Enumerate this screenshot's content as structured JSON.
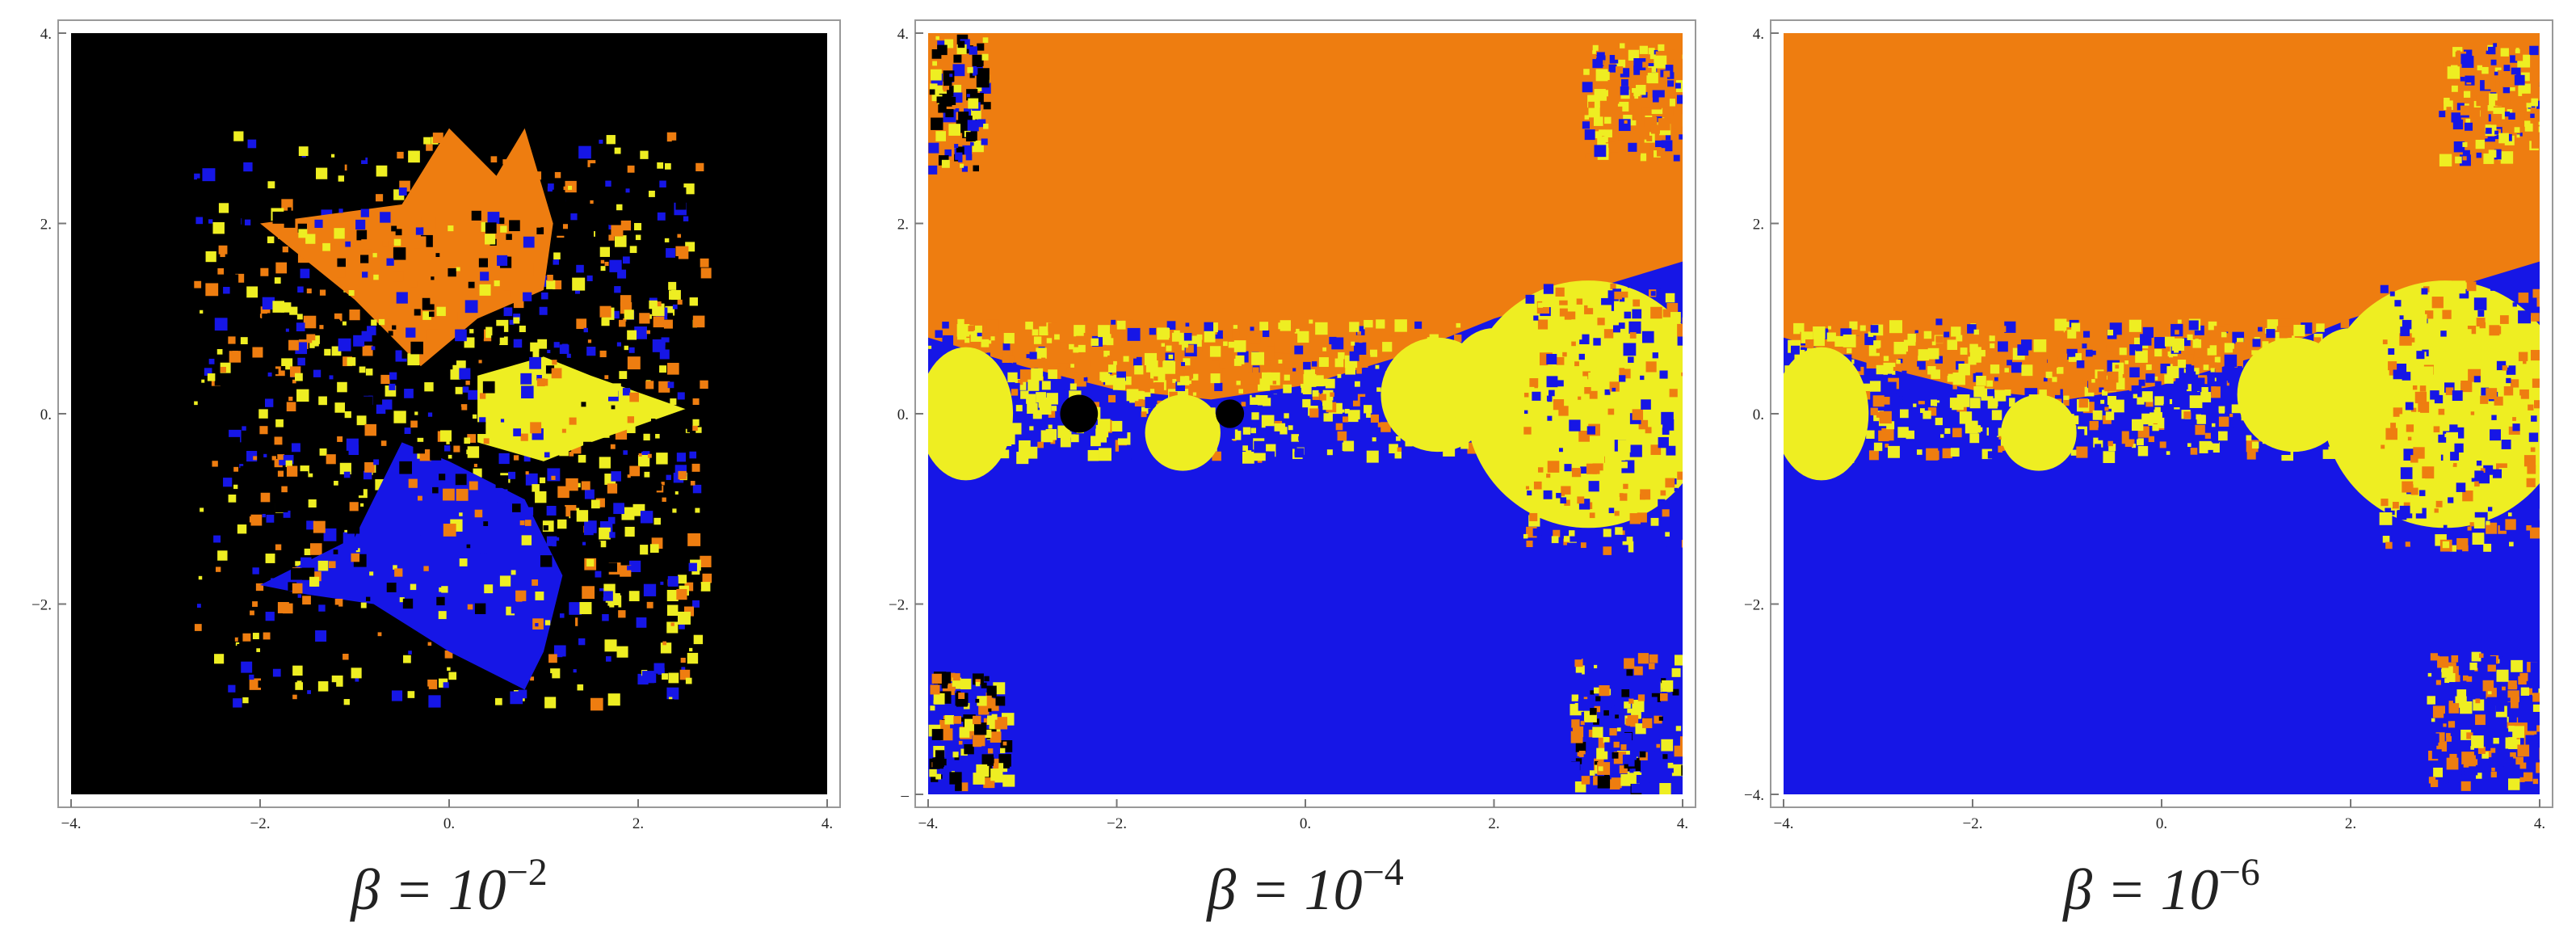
{
  "chart_data": [
    {
      "type": "basin",
      "caption": {
        "base": "β = 10",
        "exponent": "−2"
      },
      "xlim": [
        -4,
        4
      ],
      "ylim": [
        -4,
        4
      ],
      "xticks": [
        {
          "value": -4,
          "label": "−4."
        },
        {
          "value": -2,
          "label": "−2."
        },
        {
          "value": 0,
          "label": "0."
        },
        {
          "value": 2,
          "label": "2."
        },
        {
          "value": 4,
          "label": "4."
        }
      ],
      "yticks": [
        {
          "value": 4,
          "label": "4."
        },
        {
          "value": 2,
          "label": "2."
        },
        {
          "value": 0,
          "label": "0."
        },
        {
          "value": -2,
          "label": "−2."
        }
      ]
    },
    {
      "type": "basin",
      "caption": {
        "base": "β = 10",
        "exponent": "−4"
      },
      "xlim": [
        -4,
        4
      ],
      "ylim": [
        -4,
        4
      ],
      "xticks": [
        {
          "value": -4,
          "label": "−4."
        },
        {
          "value": -2,
          "label": "−2."
        },
        {
          "value": 0,
          "label": "0."
        },
        {
          "value": 2,
          "label": "2."
        },
        {
          "value": 4,
          "label": "4."
        }
      ],
      "yticks": [
        {
          "value": 4,
          "label": "4."
        },
        {
          "value": 2,
          "label": "2."
        },
        {
          "value": 0,
          "label": "0."
        },
        {
          "value": -2,
          "label": "−2."
        },
        {
          "value": -4,
          "label": "–"
        }
      ]
    },
    {
      "type": "basin",
      "caption": {
        "base": "β = 10",
        "exponent": "−6"
      },
      "xlim": [
        -4,
        4
      ],
      "ylim": [
        -4,
        4
      ],
      "xticks": [
        {
          "value": -4,
          "label": "−4."
        },
        {
          "value": -2,
          "label": "−2."
        },
        {
          "value": 0,
          "label": "0."
        },
        {
          "value": 2,
          "label": "2."
        },
        {
          "value": 4,
          "label": "4."
        }
      ],
      "yticks": [
        {
          "value": 4,
          "label": "4."
        },
        {
          "value": 2,
          "label": "2."
        },
        {
          "value": 0,
          "label": "0."
        },
        {
          "value": -2,
          "label": "−2."
        },
        {
          "value": -4,
          "label": "−4."
        }
      ]
    }
  ]
}
